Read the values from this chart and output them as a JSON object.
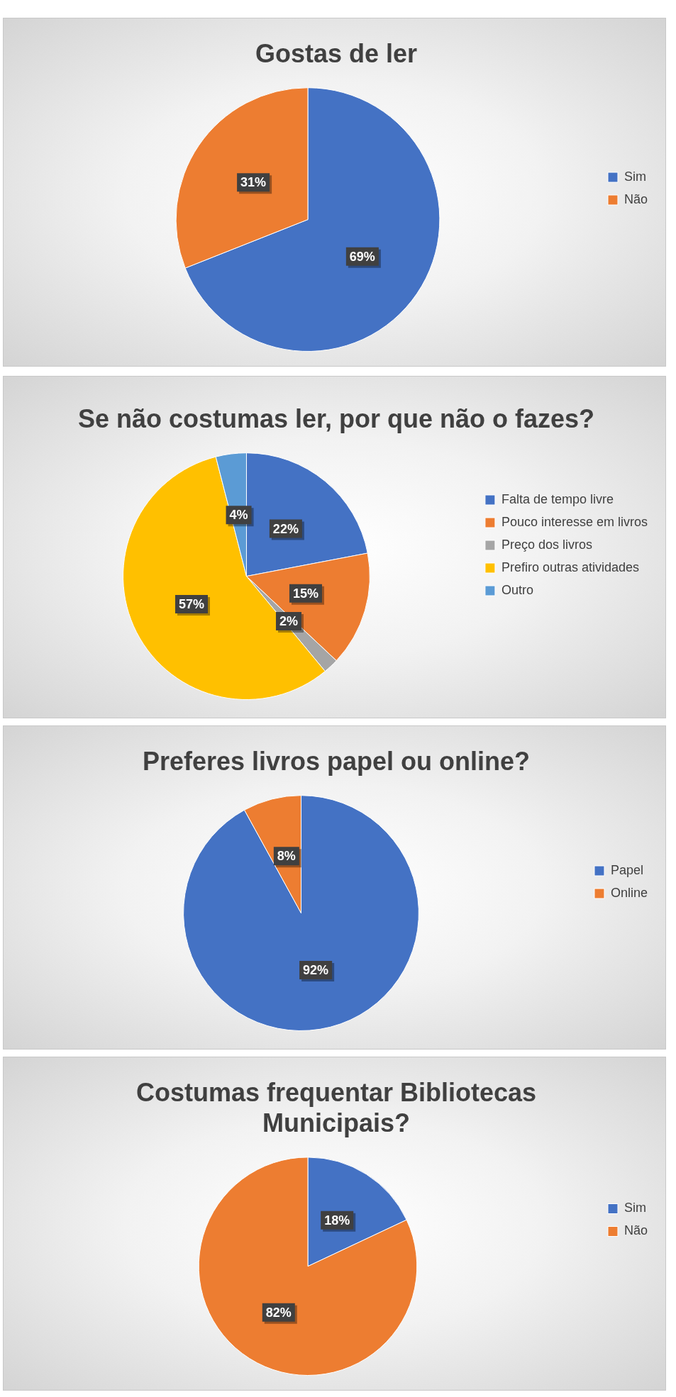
{
  "chart_data": [
    {
      "type": "pie",
      "title": "Gostas de ler",
      "categories": [
        "Sim",
        "Não"
      ],
      "values": [
        69,
        31
      ],
      "colors": [
        "#4472c4",
        "#ed7d31"
      ],
      "value_labels": [
        "69%",
        "31%"
      ],
      "legend": "right"
    },
    {
      "type": "pie",
      "title": "Se não costumas ler, por que não o fazes?",
      "categories": [
        "Falta de tempo livre",
        "Pouco interesse em livros",
        "Preço dos livros",
        "Prefiro outras atividades",
        "Outro"
      ],
      "values": [
        22,
        15,
        2,
        57,
        4
      ],
      "colors": [
        "#4472c4",
        "#ed7d31",
        "#a5a5a5",
        "#ffc000",
        "#5b9bd5"
      ],
      "value_labels": [
        "22%",
        "15%",
        "2%",
        "57%",
        "4%"
      ],
      "legend": "right"
    },
    {
      "type": "pie",
      "title": "Preferes livros papel ou online?",
      "categories": [
        "Papel",
        "Online"
      ],
      "values": [
        92,
        8
      ],
      "colors": [
        "#4472c4",
        "#ed7d31"
      ],
      "value_labels": [
        "92%",
        "8%"
      ],
      "legend": "right"
    },
    {
      "type": "pie",
      "title": "Costumas frequentar Bibliotecas Municipais?",
      "categories": [
        "Sim",
        "Não"
      ],
      "values": [
        18,
        82
      ],
      "colors": [
        "#4472c4",
        "#ed7d31"
      ],
      "value_labels": [
        "18%",
        "82%"
      ],
      "legend": "right"
    }
  ]
}
